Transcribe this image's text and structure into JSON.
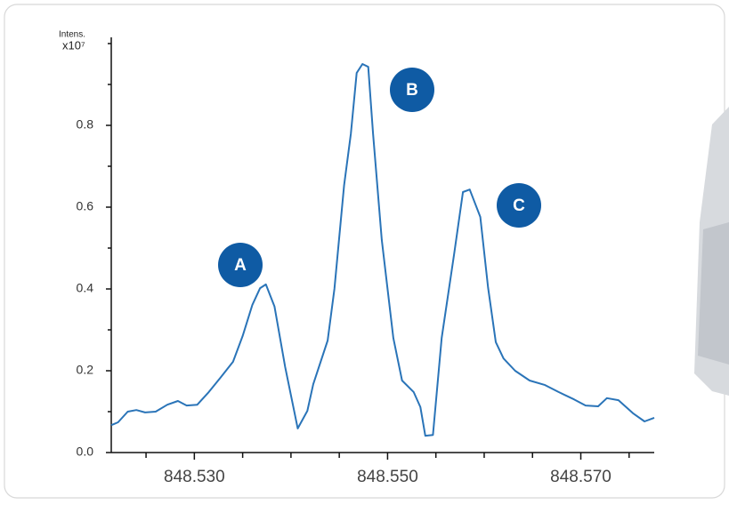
{
  "chart_data": {
    "type": "line",
    "y_label": "Intens.",
    "y_scale_label": "x10⁷",
    "annotations": [
      "A",
      "B",
      "C"
    ],
    "x": [
      848.5214,
      848.5221,
      848.5231,
      848.524,
      848.5249,
      848.526,
      848.5272,
      848.5283,
      848.5292,
      848.5303,
      848.5315,
      848.5327,
      848.534,
      848.535,
      848.536,
      848.5368,
      848.5374,
      848.5383,
      848.5394,
      848.5407,
      848.5417,
      848.5423,
      848.5438,
      848.5445,
      848.5455,
      848.5462,
      848.5468,
      848.5474,
      848.548,
      848.5485,
      848.5494,
      848.5506,
      848.5515,
      848.5527,
      848.5534,
      848.5539,
      848.5547,
      848.5556,
      848.5569,
      848.5578,
      848.5585,
      848.5596,
      848.5604,
      848.5612,
      848.562,
      848.5632,
      848.5647,
      848.5663,
      848.5677,
      848.5693,
      848.5705,
      848.5718,
      848.5727,
      848.5739,
      848.5754,
      848.5766,
      848.5776
    ],
    "series": [
      {
        "color": "#2a74b8",
        "values": [
          0.067,
          0.074,
          0.1,
          0.104,
          0.098,
          0.1,
          0.117,
          0.126,
          0.115,
          0.117,
          0.148,
          0.183,
          0.222,
          0.285,
          0.361,
          0.402,
          0.411,
          0.357,
          0.209,
          0.059,
          0.102,
          0.167,
          0.274,
          0.4,
          0.654,
          0.78,
          0.928,
          0.95,
          0.943,
          0.78,
          0.52,
          0.28,
          0.176,
          0.148,
          0.111,
          0.041,
          0.043,
          0.28,
          0.487,
          0.637,
          0.643,
          0.576,
          0.404,
          0.27,
          0.23,
          0.2,
          0.176,
          0.165,
          0.148,
          0.13,
          0.115,
          0.113,
          0.133,
          0.128,
          0.096,
          0.076,
          0.085
        ]
      }
    ],
    "xlim": [
      848.5214,
      848.5776
    ],
    "xticks": [
      {
        "value": 848.53,
        "label": "848.530"
      },
      {
        "value": 848.55,
        "label": "848.550"
      },
      {
        "value": 848.57,
        "label": "848.570"
      }
    ],
    "minor_xticks": [
      848.525,
      848.535,
      848.54,
      848.545,
      848.555,
      848.56,
      848.565,
      848.575
    ],
    "ylim": [
      0,
      1.0
    ],
    "yticks": [
      {
        "value": 0,
        "label": "0.0"
      },
      0.2,
      0.4,
      0.6,
      0.8
    ],
    "minor_yticks": [
      0.1,
      0.3,
      0.5,
      0.7,
      0.9,
      1.0
    ],
    "grid": false
  }
}
